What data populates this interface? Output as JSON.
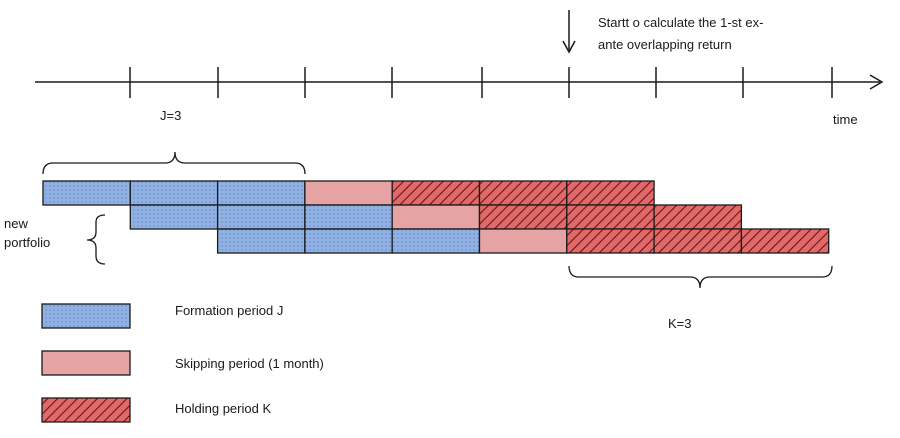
{
  "annotation": {
    "line1": "Startt o calculate the 1-st ex-",
    "line2": "ante overlapping return"
  },
  "axis": {
    "time_label": "time"
  },
  "braces": {
    "j_label": "J=3",
    "k_label": "K=3"
  },
  "portfolio_label": {
    "line1": "new",
    "line2": "portfolio"
  },
  "rows": [
    [
      "formation",
      "formation",
      "formation",
      "skipping",
      "holding",
      "holding",
      "holding"
    ],
    [
      null,
      "formation",
      "formation",
      "formation",
      "skipping",
      "holding",
      "holding",
      "holding"
    ],
    [
      null,
      null,
      "formation",
      "formation",
      "formation",
      "skipping",
      "holding",
      "holding",
      "holding"
    ]
  ],
  "legend": [
    {
      "kind": "formation",
      "label": "Formation period J"
    },
    {
      "kind": "skipping",
      "label": "Skipping period (1 month)"
    },
    {
      "kind": "holding",
      "label": "Holding period K"
    }
  ],
  "colors": {
    "formation": "#8fb1e3",
    "skipping": "#e6a3a3",
    "holding": "#e06a6a",
    "stroke": "#1a1a1a"
  }
}
